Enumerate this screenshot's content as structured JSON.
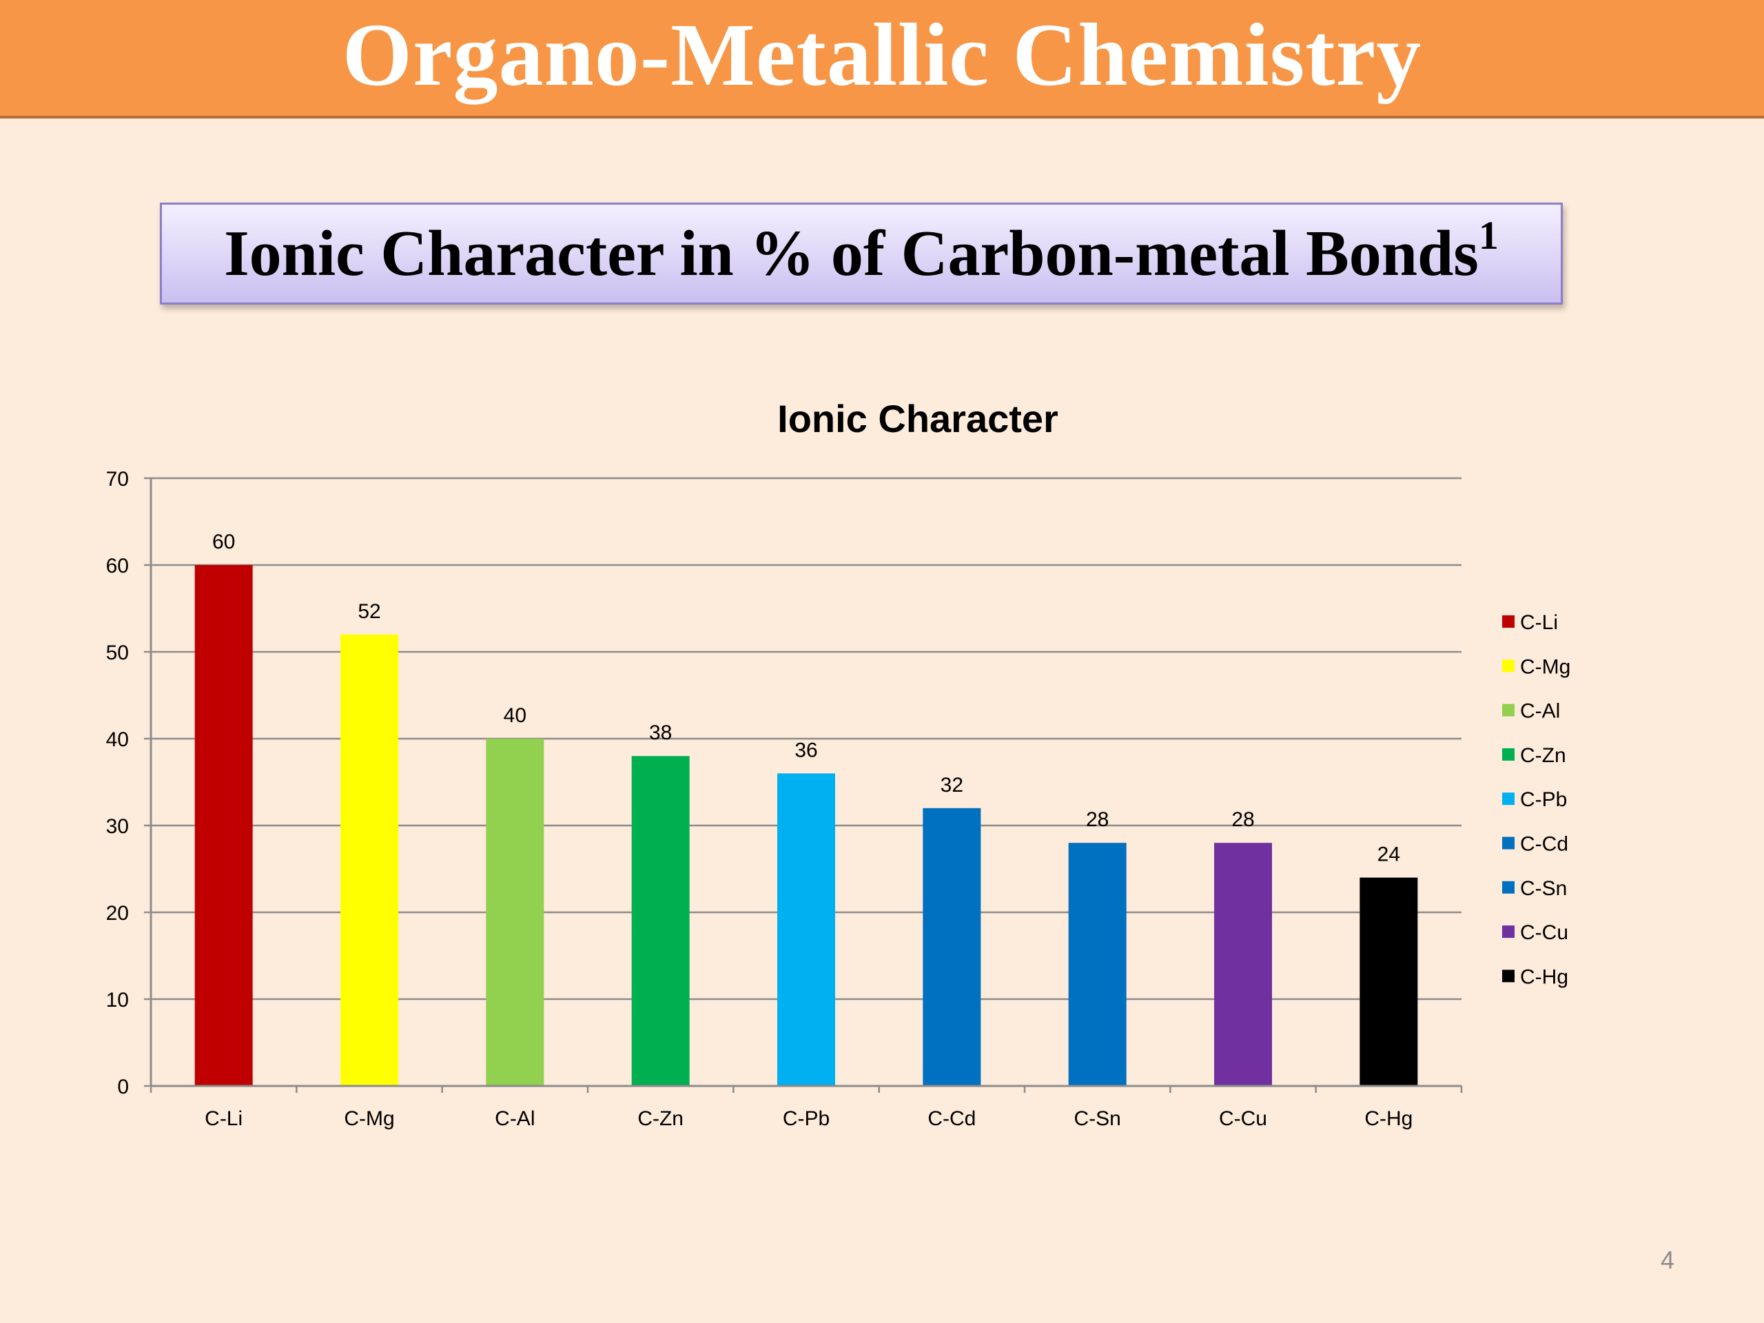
{
  "slide": {
    "title": "Organo-Metallic Chemistry",
    "subtitle": "Ionic Character in % of Carbon-metal Bonds",
    "subtitle_superscript": "1",
    "page_number": "4"
  },
  "colors": {
    "title_bar": "#f79646",
    "background": "#fdebdb",
    "subtitle_box": "#ddd6f7"
  },
  "chart_data": {
    "type": "bar",
    "title": "Ionic Character",
    "xlabel": "",
    "ylabel": "",
    "categories": [
      "C-Li",
      "C-Mg",
      "C-Al",
      "C-Zn",
      "C-Pb",
      "C-Cd",
      "C-Sn",
      "C-Cu",
      "C-Hg"
    ],
    "values": [
      60,
      52,
      40,
      38,
      36,
      32,
      28,
      28,
      24
    ],
    "data_labels": [
      "60",
      "52",
      "40",
      "38",
      "36",
      "32",
      "28",
      "28",
      "24"
    ],
    "colors": [
      "#c00000",
      "#ffff00",
      "#92d050",
      "#00b050",
      "#00b0f0",
      "#0070c0",
      "#0070c0",
      "#7030a0",
      "#000000"
    ],
    "ylim": [
      0,
      70
    ],
    "yticks": [
      0,
      10,
      20,
      30,
      40,
      50,
      60,
      70
    ],
    "grid": true,
    "legend": {
      "position": "right",
      "entries": [
        "C-Li",
        "C-Mg",
        "C-Al",
        "C-Zn",
        "C-Pb",
        "C-Cd",
        "C-Sn",
        "C-Cu",
        "C-Hg"
      ]
    }
  }
}
